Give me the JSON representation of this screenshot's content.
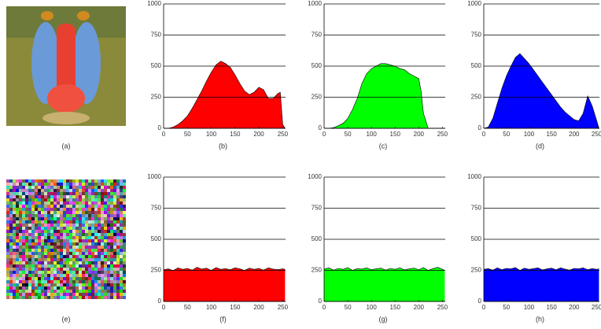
{
  "images": [
    {
      "caption": "(a)"
    },
    {
      "caption": "(e)"
    }
  ],
  "chart_data": [
    {
      "type": "area",
      "caption": "(b)",
      "color": "#ff0000",
      "x": [
        0,
        10,
        20,
        30,
        40,
        50,
        60,
        70,
        80,
        90,
        100,
        110,
        120,
        130,
        140,
        150,
        160,
        170,
        180,
        190,
        200,
        210,
        220,
        230,
        240,
        245,
        250,
        255
      ],
      "values": [
        0,
        0,
        10,
        30,
        60,
        100,
        160,
        230,
        300,
        380,
        450,
        510,
        540,
        520,
        490,
        430,
        360,
        300,
        270,
        290,
        330,
        310,
        240,
        240,
        280,
        290,
        30,
        0
      ],
      "xlim": [
        0,
        256
      ],
      "xticks": [
        0,
        50,
        100,
        150,
        200,
        250
      ],
      "ylim": [
        0,
        1000
      ],
      "yticks": [
        0,
        250,
        500,
        750,
        1000
      ],
      "grid": true
    },
    {
      "type": "area",
      "caption": "(c)",
      "color": "#00ff00",
      "x": [
        0,
        10,
        20,
        30,
        40,
        50,
        60,
        70,
        80,
        90,
        100,
        110,
        120,
        130,
        140,
        150,
        160,
        170,
        180,
        190,
        200,
        205,
        210,
        220,
        230,
        240,
        250,
        255
      ],
      "values": [
        0,
        0,
        5,
        20,
        40,
        80,
        150,
        240,
        360,
        440,
        480,
        500,
        520,
        520,
        510,
        500,
        480,
        470,
        440,
        420,
        400,
        300,
        120,
        0,
        0,
        0,
        0,
        0
      ],
      "xlim": [
        0,
        256
      ],
      "xticks": [
        0,
        50,
        100,
        150,
        200,
        250
      ],
      "ylim": [
        0,
        1000
      ],
      "yticks": [
        0,
        250,
        500,
        750,
        1000
      ],
      "grid": true
    },
    {
      "type": "area",
      "caption": "(d)",
      "color": "#0000ff",
      "x": [
        0,
        10,
        20,
        30,
        40,
        50,
        60,
        70,
        80,
        90,
        100,
        110,
        120,
        130,
        140,
        150,
        160,
        170,
        180,
        190,
        200,
        210,
        220,
        230,
        240,
        250,
        255
      ],
      "values": [
        0,
        10,
        80,
        200,
        320,
        420,
        500,
        570,
        600,
        560,
        520,
        470,
        420,
        370,
        320,
        270,
        220,
        170,
        130,
        100,
        70,
        60,
        120,
        260,
        180,
        60,
        0
      ],
      "xlim": [
        0,
        256
      ],
      "xticks": [
        0,
        50,
        100,
        150,
        200,
        250
      ],
      "ylim": [
        0,
        1000
      ],
      "yticks": [
        0,
        250,
        500,
        750,
        1000
      ],
      "grid": true
    },
    {
      "type": "area",
      "caption": "(f)",
      "color": "#ff0000",
      "x": [
        0,
        10,
        20,
        30,
        40,
        50,
        60,
        70,
        80,
        90,
        100,
        110,
        120,
        130,
        140,
        150,
        160,
        170,
        180,
        190,
        200,
        210,
        220,
        230,
        240,
        250,
        255
      ],
      "values": [
        255,
        262,
        248,
        270,
        258,
        266,
        252,
        275,
        260,
        268,
        250,
        272,
        258,
        264,
        255,
        270,
        262,
        250,
        268,
        258,
        265,
        252,
        270,
        260,
        256,
        262,
        258
      ],
      "xlim": [
        0,
        256
      ],
      "xticks": [
        0,
        50,
        100,
        150,
        200,
        250
      ],
      "ylim": [
        0,
        1000
      ],
      "yticks": [
        0,
        250,
        500,
        750,
        1000
      ],
      "grid": true
    },
    {
      "type": "area",
      "caption": "(g)",
      "color": "#00ff00",
      "x": [
        0,
        10,
        20,
        30,
        40,
        50,
        60,
        70,
        80,
        90,
        100,
        110,
        120,
        130,
        140,
        150,
        160,
        170,
        180,
        190,
        200,
        210,
        220,
        230,
        240,
        250,
        255
      ],
      "values": [
        260,
        270,
        252,
        266,
        258,
        272,
        250,
        264,
        260,
        270,
        256,
        262,
        268,
        252,
        266,
        258,
        270,
        254,
        262,
        268,
        256,
        272,
        250,
        264,
        275,
        258,
        250
      ],
      "xlim": [
        0,
        256
      ],
      "xticks": [
        0,
        50,
        100,
        150,
        200,
        250
      ],
      "ylim": [
        0,
        1000
      ],
      "yticks": [
        0,
        250,
        500,
        750,
        1000
      ],
      "grid": true
    },
    {
      "type": "area",
      "caption": "(h)",
      "color": "#0000ff",
      "x": [
        0,
        10,
        20,
        30,
        40,
        50,
        60,
        70,
        80,
        90,
        100,
        110,
        120,
        130,
        140,
        150,
        160,
        170,
        180,
        190,
        200,
        210,
        220,
        230,
        240,
        250,
        255
      ],
      "values": [
        258,
        264,
        252,
        270,
        256,
        266,
        262,
        272,
        250,
        268,
        258,
        264,
        270,
        254,
        262,
        268,
        256,
        270,
        260,
        252,
        266,
        262,
        270,
        256,
        264,
        258,
        262
      ],
      "xlim": [
        0,
        256
      ],
      "xticks": [
        0,
        50,
        100,
        150,
        200,
        250
      ],
      "ylim": [
        0,
        1000
      ],
      "yticks": [
        0,
        250,
        500,
        750,
        1000
      ],
      "grid": true
    }
  ]
}
